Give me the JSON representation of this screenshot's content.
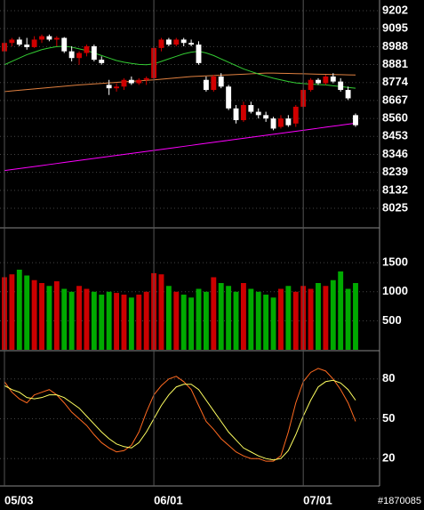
{
  "id_label": "#1870085",
  "chart_data": [
    {
      "type": "candlestick",
      "up_color": "#d00000",
      "down_color": "#ffffff",
      "ylim": [
        7914,
        9255
      ],
      "yticks": [
        9202,
        9095,
        8988,
        8881,
        8774,
        8667,
        8560,
        8453,
        8346,
        8239,
        8132,
        8025
      ],
      "grid": true,
      "open": [
        8960,
        9010,
        9030,
        9000,
        8985,
        9030,
        9050,
        9030,
        9040,
        8960,
        8920,
        8950,
        8990,
        8910,
        8760,
        8740,
        8750,
        8790,
        8770,
        8790,
        8800,
        8980,
        9030,
        9000,
        9030,
        9010,
        9000,
        8790,
        8730,
        8810,
        8750,
        8620,
        8550,
        8640,
        8600,
        8580,
        8560,
        8510,
        8560,
        8530,
        8630,
        8730,
        8790,
        8770,
        8810,
        8780,
        8730,
        8580
      ],
      "high": [
        9030,
        9040,
        9045,
        9040,
        9050,
        9060,
        9060,
        9050,
        9045,
        8990,
        8960,
        9000,
        9000,
        8930,
        8790,
        8770,
        8800,
        8810,
        8800,
        8810,
        8990,
        9040,
        9040,
        9040,
        9040,
        9030,
        9020,
        8810,
        8820,
        8830,
        8760,
        8640,
        8660,
        8660,
        8620,
        8600,
        8570,
        8580,
        8580,
        8640,
        8740,
        8800,
        8800,
        8820,
        8830,
        8800,
        8750,
        8590
      ],
      "low": [
        8950,
        8990,
        8990,
        8970,
        8980,
        9010,
        9020,
        8990,
        8950,
        8900,
        8880,
        8930,
        8900,
        8880,
        8700,
        8720,
        8730,
        8760,
        8760,
        8760,
        8790,
        8960,
        8990,
        8990,
        8990,
        8990,
        8880,
        8720,
        8720,
        8740,
        8610,
        8530,
        8540,
        8590,
        8560,
        8540,
        8490,
        8500,
        8510,
        8510,
        8620,
        8720,
        8760,
        8760,
        8770,
        8720,
        8670,
        8510
      ],
      "close": [
        9010,
        9030,
        9000,
        8985,
        9030,
        9050,
        9030,
        9040,
        8960,
        8920,
        8950,
        8990,
        8910,
        8890,
        8740,
        8750,
        8790,
        8770,
        8790,
        8800,
        8980,
        9030,
        9000,
        9030,
        9010,
        9000,
        8890,
        8730,
        8810,
        8750,
        8620,
        8550,
        8640,
        8600,
        8580,
        8560,
        8500,
        8560,
        8520,
        8630,
        8730,
        8790,
        8770,
        8810,
        8780,
        8730,
        8680,
        8520
      ],
      "series": [
        {
          "color": "#ff00ff",
          "values": [
            8250,
            8256,
            8262,
            8268,
            8274,
            8280,
            8286,
            8292,
            8298,
            8304,
            8310,
            8316,
            8322,
            8328,
            8334,
            8340,
            8346,
            8352,
            8358,
            8364,
            8370,
            8376,
            8382,
            8388,
            8394,
            8400,
            8406,
            8412,
            8418,
            8424,
            8430,
            8436,
            8442,
            8448,
            8454,
            8460,
            8466,
            8472,
            8478,
            8484,
            8490,
            8496,
            8502,
            8508,
            8514,
            8520,
            8526,
            8532
          ]
        },
        {
          "color": "#e08040",
          "values": [
            8720,
            8724,
            8728,
            8732,
            8736,
            8740,
            8744,
            8748,
            8752,
            8756,
            8760,
            8763,
            8766,
            8769,
            8772,
            8775,
            8778,
            8781,
            8784,
            8787,
            8790,
            8794,
            8798,
            8802,
            8806,
            8810,
            8812,
            8814,
            8816,
            8818,
            8820,
            8822,
            8824,
            8826,
            8828,
            8830,
            8830,
            8829,
            8828,
            8827,
            8826,
            8825,
            8824,
            8823,
            8822,
            8821,
            8820,
            8819
          ]
        },
        {
          "color": "#33cc33",
          "values": [
            8880,
            8900,
            8920,
            8940,
            8955,
            8970,
            8980,
            8988,
            8990,
            8985,
            8975,
            8965,
            8950,
            8935,
            8920,
            8905,
            8895,
            8888,
            8882,
            8880,
            8885,
            8900,
            8915,
            8930,
            8945,
            8955,
            8960,
            8950,
            8935,
            8915,
            8895,
            8875,
            8855,
            8840,
            8825,
            8812,
            8800,
            8790,
            8780,
            8772,
            8768,
            8765,
            8762,
            8760,
            8755,
            8750,
            8745,
            8740
          ]
        }
      ]
    },
    {
      "type": "bar",
      "up_color": "#cc0000",
      "down_color": "#00aa00",
      "ylim": [
        0,
        2070
      ],
      "yticks": [
        500,
        1000,
        1500
      ],
      "grid": true,
      "values": [
        1250,
        1300,
        1380,
        1280,
        1200,
        1150,
        1100,
        1180,
        1050,
        1000,
        1100,
        1050,
        1000,
        950,
        1000,
        980,
        950,
        900,
        950,
        1000,
        1320,
        1300,
        1100,
        1000,
        950,
        900,
        1050,
        1000,
        1250,
        1150,
        1100,
        1000,
        1150,
        1050,
        1000,
        950,
        900,
        1050,
        1100,
        1000,
        1100,
        1050,
        1150,
        1100,
        1200,
        1350,
        1050,
        1150
      ]
    },
    {
      "type": "line",
      "ylim": [
        0,
        100
      ],
      "yticks": [
        20,
        50,
        80
      ],
      "grid": true,
      "categories": [
        "05/03",
        null,
        null,
        null,
        null,
        null,
        null,
        null,
        null,
        null,
        null,
        null,
        null,
        null,
        null,
        null,
        null,
        null,
        null,
        null,
        "06/01",
        null,
        null,
        null,
        null,
        null,
        null,
        null,
        null,
        null,
        null,
        null,
        null,
        null,
        null,
        null,
        null,
        null,
        null,
        null,
        "07/01",
        null,
        null,
        null,
        null,
        null,
        null,
        null
      ],
      "series": [
        {
          "color": "#ff6a20",
          "values": [
            78,
            70,
            65,
            62,
            68,
            70,
            72,
            68,
            62,
            55,
            50,
            45,
            38,
            32,
            28,
            25,
            26,
            30,
            40,
            55,
            68,
            75,
            80,
            82,
            78,
            72,
            60,
            48,
            42,
            35,
            30,
            25,
            22,
            20,
            20,
            18,
            18,
            22,
            40,
            62,
            78,
            85,
            88,
            86,
            80,
            72,
            62,
            48
          ]
        },
        {
          "color": "#ffff60",
          "values": [
            75,
            72,
            70,
            66,
            65,
            66,
            68,
            68,
            66,
            62,
            58,
            52,
            46,
            40,
            35,
            31,
            29,
            28,
            32,
            40,
            50,
            60,
            68,
            74,
            76,
            76,
            72,
            64,
            56,
            48,
            40,
            34,
            28,
            25,
            22,
            20,
            19,
            20,
            26,
            38,
            52,
            64,
            74,
            78,
            79,
            77,
            72,
            64
          ]
        }
      ]
    }
  ]
}
